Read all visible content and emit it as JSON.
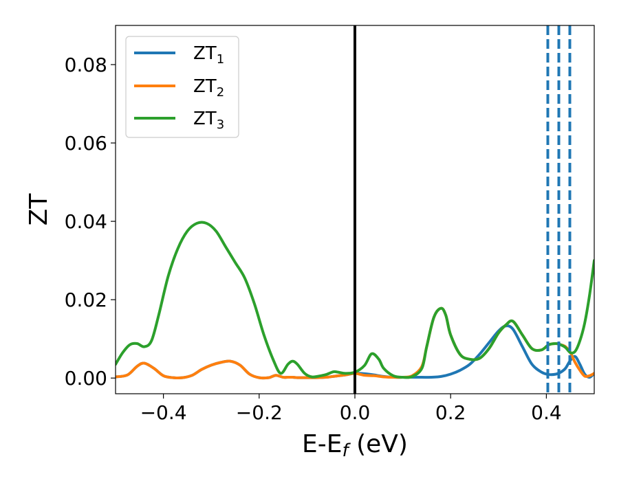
{
  "chart_data": {
    "type": "line",
    "title": "",
    "xlabel": "E-E",
    "xlabel_sub": "f",
    "xlabel_unit": " (eV)",
    "ylabel": "ZT",
    "xlim": [
      -0.5,
      0.5
    ],
    "ylim": [
      -0.004,
      0.09
    ],
    "xticks": [
      -0.4,
      -0.2,
      0.0,
      0.2,
      0.4
    ],
    "xtick_labels": [
      "−0.4",
      "−0.2",
      "0.0",
      "0.2",
      "0.4"
    ],
    "yticks": [
      0.0,
      0.02,
      0.04,
      0.06,
      0.08
    ],
    "ytick_labels": [
      "0.00",
      "0.02",
      "0.04",
      "0.06",
      "0.08"
    ],
    "legend_position": "top-left",
    "vertical_lines": [
      {
        "x": 0.0,
        "color": "#000000",
        "style": "solid"
      },
      {
        "x": 0.403,
        "color": "#1f77b4",
        "style": "dashed"
      },
      {
        "x": 0.426,
        "color": "#1f77b4",
        "style": "dashed"
      },
      {
        "x": 0.449,
        "color": "#1f77b4",
        "style": "dashed"
      }
    ],
    "series": [
      {
        "name": "ZT",
        "sub": "1",
        "color": "#1f77b4",
        "x": [
          -0.5,
          -0.475,
          -0.455,
          -0.44,
          -0.42,
          -0.4,
          -0.38,
          -0.36,
          -0.34,
          -0.32,
          -0.3,
          -0.28,
          -0.26,
          -0.24,
          -0.22,
          -0.2,
          -0.18,
          -0.165,
          -0.15,
          -0.14,
          -0.13,
          -0.12,
          -0.1,
          -0.08,
          -0.06,
          -0.04,
          -0.02,
          0.0,
          0.02,
          0.04,
          0.06,
          0.08,
          0.1,
          0.12,
          0.14,
          0.16,
          0.18,
          0.2,
          0.22,
          0.24,
          0.26,
          0.28,
          0.3,
          0.315,
          0.33,
          0.35,
          0.37,
          0.39,
          0.405,
          0.42,
          0.43,
          0.44,
          0.45,
          0.46,
          0.47,
          0.48,
          0.49,
          0.5
        ],
        "y": [
          0.0003,
          0.0008,
          0.003,
          0.0038,
          0.0025,
          0.0006,
          0.0001,
          0.0001,
          0.0007,
          0.0022,
          0.0033,
          0.004,
          0.0043,
          0.0033,
          0.001,
          0.0001,
          0.0001,
          0.0007,
          0.0002,
          0.0002,
          0.0002,
          0.0001,
          0.0001,
          0.0001,
          0.0002,
          0.0005,
          0.0008,
          0.0012,
          0.0011,
          0.0008,
          0.0004,
          0.0002,
          0.0002,
          0.0002,
          0.0002,
          0.0002,
          0.0004,
          0.001,
          0.002,
          0.0035,
          0.006,
          0.009,
          0.012,
          0.0133,
          0.0125,
          0.008,
          0.0035,
          0.0015,
          0.0009,
          0.001,
          0.0015,
          0.0025,
          0.0045,
          0.0055,
          0.0035,
          0.001,
          0.0002,
          0.0012
        ]
      },
      {
        "name": "ZT",
        "sub": "2",
        "color": "#ff7f0e",
        "x": [
          -0.5,
          -0.475,
          -0.455,
          -0.44,
          -0.42,
          -0.4,
          -0.38,
          -0.36,
          -0.34,
          -0.32,
          -0.3,
          -0.28,
          -0.26,
          -0.24,
          -0.22,
          -0.2,
          -0.18,
          -0.165,
          -0.15,
          -0.14,
          -0.13,
          -0.12,
          -0.1,
          -0.08,
          -0.06,
          -0.04,
          -0.02,
          0.0,
          0.02,
          0.04,
          0.06,
          0.08,
          0.1,
          0.12,
          0.14,
          0.15,
          0.165,
          0.18,
          0.19,
          0.2,
          0.22,
          0.24,
          0.26,
          0.28,
          0.3,
          0.315,
          0.33,
          0.35,
          0.37,
          0.39,
          0.405,
          0.42,
          0.43,
          0.44,
          0.45,
          0.46,
          0.47,
          0.48,
          0.49,
          0.5
        ],
        "y": [
          0.0003,
          0.0008,
          0.003,
          0.0038,
          0.0025,
          0.0006,
          0.0001,
          0.0001,
          0.0007,
          0.0022,
          0.0033,
          0.004,
          0.0043,
          0.0033,
          0.001,
          0.0001,
          0.0001,
          0.0007,
          0.0002,
          0.0002,
          0.0002,
          0.0001,
          0.0001,
          0.0001,
          0.0002,
          0.0005,
          0.0008,
          0.0012,
          0.0007,
          0.0006,
          0.0003,
          0.0002,
          0.0002,
          0.0006,
          0.003,
          0.008,
          0.0155,
          0.0178,
          0.016,
          0.011,
          0.006,
          0.0048,
          0.005,
          0.0075,
          0.0115,
          0.0135,
          0.0145,
          0.011,
          0.0075,
          0.0072,
          0.0085,
          0.0088,
          0.0085,
          0.008,
          0.0065,
          0.004,
          0.002,
          0.0005,
          0.0006,
          0.0012
        ]
      },
      {
        "name": "ZT",
        "sub": "3",
        "color": "#2ca02c",
        "x": [
          -0.5,
          -0.485,
          -0.47,
          -0.455,
          -0.44,
          -0.425,
          -0.41,
          -0.39,
          -0.37,
          -0.35,
          -0.33,
          -0.31,
          -0.29,
          -0.27,
          -0.25,
          -0.23,
          -0.21,
          -0.19,
          -0.17,
          -0.155,
          -0.14,
          -0.13,
          -0.12,
          -0.105,
          -0.09,
          -0.075,
          -0.06,
          -0.045,
          -0.035,
          -0.02,
          0.0,
          0.02,
          0.035,
          0.05,
          0.06,
          0.08,
          0.1,
          0.12,
          0.14,
          0.15,
          0.165,
          0.18,
          0.19,
          0.2,
          0.22,
          0.24,
          0.26,
          0.28,
          0.3,
          0.315,
          0.33,
          0.35,
          0.37,
          0.39,
          0.405,
          0.42,
          0.43,
          0.44,
          0.45,
          0.46,
          0.47,
          0.48,
          0.49,
          0.5
        ],
        "y": [
          0.0035,
          0.0065,
          0.0085,
          0.0088,
          0.008,
          0.0095,
          0.016,
          0.026,
          0.033,
          0.0375,
          0.0395,
          0.0395,
          0.0375,
          0.0335,
          0.0295,
          0.0255,
          0.019,
          0.011,
          0.0045,
          0.0012,
          0.0035,
          0.0043,
          0.0035,
          0.0012,
          0.0003,
          0.0005,
          0.0009,
          0.0016,
          0.0015,
          0.0012,
          0.0015,
          0.0032,
          0.0062,
          0.0048,
          0.0025,
          0.0006,
          0.0002,
          0.0004,
          0.0025,
          0.008,
          0.0155,
          0.0178,
          0.016,
          0.011,
          0.006,
          0.0048,
          0.005,
          0.0075,
          0.0115,
          0.0135,
          0.0145,
          0.011,
          0.0075,
          0.0072,
          0.0085,
          0.0088,
          0.0085,
          0.0078,
          0.0065,
          0.0068,
          0.0095,
          0.014,
          0.021,
          0.03
        ]
      }
    ]
  }
}
